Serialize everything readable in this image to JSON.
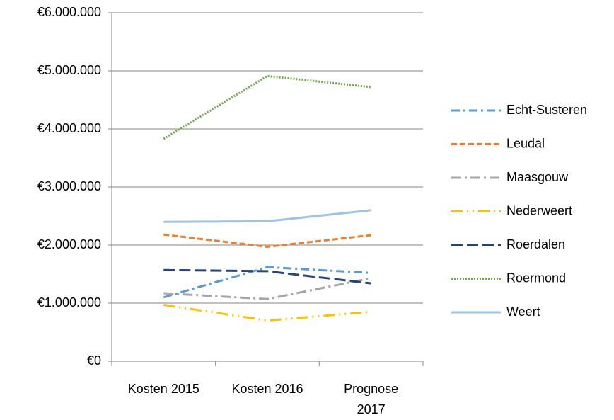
{
  "chart_data": {
    "type": "line",
    "categories": [
      "Kosten 2015",
      "Kosten 2016",
      "Prognose 2017"
    ],
    "series": [
      {
        "name": "Echt-Susteren",
        "color": "#5b9bd5",
        "dash": "12,5,3,5",
        "values": [
          1100000,
          1620000,
          1520000
        ]
      },
      {
        "name": "Leudal",
        "color": "#ed7d31",
        "dash": "8,4",
        "values": [
          2180000,
          1970000,
          2170000
        ]
      },
      {
        "name": "Maasgouw",
        "color": "#a5a5a5",
        "dash": "14,5,3,5",
        "values": [
          1170000,
          1070000,
          1430000
        ]
      },
      {
        "name": "Nederweert",
        "color": "#ffc000",
        "dash": "16,6,2,6,2,6",
        "values": [
          970000,
          700000,
          850000
        ]
      },
      {
        "name": "Roerdalen",
        "color": "#264478",
        "dash": "16,6",
        "values": [
          1570000,
          1550000,
          1340000
        ]
      },
      {
        "name": "Roermond",
        "color": "#70ad47",
        "dash": "2,2",
        "values": [
          3830000,
          4910000,
          4720000
        ]
      },
      {
        "name": "Weert",
        "color": "#9dc3e6",
        "dash": "none",
        "values": [
          2400000,
          2410000,
          2600000
        ]
      }
    ],
    "ylim": [
      0,
      6000000
    ],
    "yticks": [
      {
        "value": 0,
        "label": "€0"
      },
      {
        "value": 1000000,
        "label": "€1.000.000"
      },
      {
        "value": 2000000,
        "label": "€2.000.000"
      },
      {
        "value": 3000000,
        "label": "€3.000.000"
      },
      {
        "value": 4000000,
        "label": "€4.000.000"
      },
      {
        "value": 5000000,
        "label": "€5.000.000"
      },
      {
        "value": 6000000,
        "label": "€6.000.000"
      }
    ],
    "grid": true,
    "legend": "right"
  }
}
